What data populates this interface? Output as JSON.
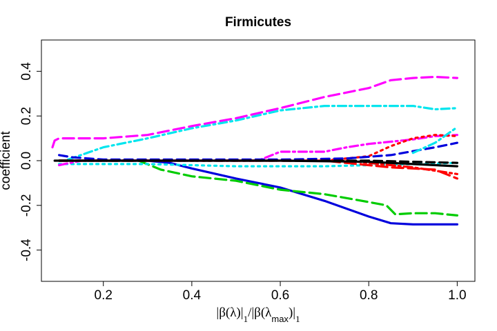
{
  "chart_data": {
    "type": "line",
    "title": "Firmicutes",
    "ylabel": "coefficient",
    "xlabel": {
      "p1": "|β(λ)|",
      "s1": "1",
      "p2": "/|β(λ",
      "s2": "max",
      "p3": ")|",
      "s3": "1"
    },
    "xlim": [
      0.06,
      1.04
    ],
    "ylim": [
      -0.54,
      0.54
    ],
    "x_ticks": [
      0.2,
      0.4,
      0.6,
      0.8,
      1.0
    ],
    "x_tick_labels": [
      "0.2",
      "0.4",
      "0.6",
      "0.8",
      "1.0"
    ],
    "y_ticks": [
      -0.4,
      -0.2,
      0.0,
      0.2,
      0.4
    ],
    "y_tick_labels": [
      "-0.4",
      "-0.2",
      "0.0",
      "0.2",
      "0.4"
    ],
    "grid": false,
    "series": [
      {
        "color": "#ff00ff",
        "dash": "16 7",
        "points": [
          [
            0.085,
            0.06
          ],
          [
            0.09,
            0.09
          ],
          [
            0.1,
            0.1
          ],
          [
            0.2,
            0.1
          ],
          [
            0.3,
            0.115
          ],
          [
            0.4,
            0.155
          ],
          [
            0.5,
            0.19
          ],
          [
            0.6,
            0.235
          ],
          [
            0.7,
            0.285
          ],
          [
            0.8,
            0.325
          ],
          [
            0.85,
            0.36
          ],
          [
            0.9,
            0.37
          ],
          [
            0.95,
            0.375
          ],
          [
            1.0,
            0.37
          ]
        ]
      },
      {
        "color": "#00e5ee",
        "dash": "12 5 3 5",
        "points": [
          [
            0.12,
            0.005
          ],
          [
            0.2,
            0.06
          ],
          [
            0.3,
            0.1
          ],
          [
            0.4,
            0.145
          ],
          [
            0.5,
            0.18
          ],
          [
            0.6,
            0.225
          ],
          [
            0.7,
            0.245
          ],
          [
            0.8,
            0.245
          ],
          [
            0.9,
            0.245
          ],
          [
            0.95,
            0.23
          ],
          [
            1.0,
            0.235
          ]
        ]
      },
      {
        "color": "#0000dd",
        "dash": "",
        "points": [
          [
            0.1,
            0.0
          ],
          [
            0.2,
            0.0
          ],
          [
            0.3,
            0.0
          ],
          [
            0.35,
            -0.01
          ],
          [
            0.4,
            -0.035
          ],
          [
            0.5,
            -0.08
          ],
          [
            0.6,
            -0.12
          ],
          [
            0.7,
            -0.18
          ],
          [
            0.8,
            -0.25
          ],
          [
            0.85,
            -0.28
          ],
          [
            0.9,
            -0.285
          ],
          [
            1.0,
            -0.285
          ]
        ]
      },
      {
        "color": "#00cc00",
        "dash": "16 7",
        "points": [
          [
            0.1,
            0.0
          ],
          [
            0.28,
            0.0
          ],
          [
            0.33,
            -0.04
          ],
          [
            0.4,
            -0.07
          ],
          [
            0.5,
            -0.09
          ],
          [
            0.6,
            -0.13
          ],
          [
            0.7,
            -0.15
          ],
          [
            0.8,
            -0.185
          ],
          [
            0.84,
            -0.2
          ],
          [
            0.86,
            -0.24
          ],
          [
            0.9,
            -0.235
          ],
          [
            0.95,
            -0.235
          ],
          [
            1.0,
            -0.245
          ]
        ]
      },
      {
        "color": "#00e5ee",
        "dash": "3 6",
        "points": [
          [
            0.1,
            -0.015
          ],
          [
            0.3,
            -0.015
          ],
          [
            0.4,
            -0.02
          ],
          [
            0.5,
            -0.025
          ],
          [
            0.6,
            -0.025
          ],
          [
            0.7,
            -0.025
          ],
          [
            0.8,
            -0.02
          ],
          [
            0.9,
            -0.015
          ],
          [
            1.0,
            -0.01
          ]
        ]
      },
      {
        "color": "#ff00ff",
        "dash": "12 5 3 5",
        "points": [
          [
            0.1,
            -0.02
          ],
          [
            0.15,
            0.0
          ],
          [
            0.55,
            0.0
          ],
          [
            0.6,
            0.04
          ],
          [
            0.65,
            0.04
          ],
          [
            0.7,
            0.04
          ],
          [
            0.75,
            0.06
          ],
          [
            0.8,
            0.075
          ],
          [
            0.9,
            0.095
          ],
          [
            0.95,
            0.11
          ],
          [
            1.0,
            0.115
          ]
        ]
      },
      {
        "color": "#ff0000",
        "dash": "3 6",
        "points": [
          [
            0.1,
            0.0
          ],
          [
            0.7,
            0.0
          ],
          [
            0.8,
            0.02
          ],
          [
            0.85,
            0.065
          ],
          [
            0.9,
            0.1
          ],
          [
            0.95,
            0.115
          ],
          [
            1.0,
            0.11
          ]
        ]
      },
      {
        "color": "#0000dd",
        "dash": "12 7",
        "points": [
          [
            0.1,
            0.025
          ],
          [
            0.13,
            0.015
          ],
          [
            0.2,
            0.005
          ],
          [
            0.6,
            0.005
          ],
          [
            0.75,
            0.01
          ],
          [
            0.85,
            0.025
          ],
          [
            0.95,
            0.06
          ],
          [
            1.0,
            0.08
          ]
        ]
      },
      {
        "color": "#00e5ee",
        "dash": "12 5 3 5",
        "points": [
          [
            0.9,
            0.035
          ],
          [
            0.95,
            0.08
          ],
          [
            1.0,
            0.15
          ]
        ]
      },
      {
        "color": "#ff0000",
        "dash": "16 7",
        "points": [
          [
            0.1,
            0.0
          ],
          [
            0.7,
            0.0
          ],
          [
            0.8,
            -0.02
          ],
          [
            0.85,
            -0.03
          ],
          [
            0.9,
            -0.035
          ],
          [
            0.95,
            -0.04
          ],
          [
            1.0,
            -0.08
          ]
        ]
      },
      {
        "color": "#ff0000",
        "dash": "12 5 3 5",
        "points": [
          [
            0.1,
            0.0
          ],
          [
            0.75,
            0.0
          ],
          [
            0.8,
            -0.01
          ],
          [
            0.9,
            -0.03
          ],
          [
            1.0,
            -0.06
          ]
        ]
      },
      {
        "color": "#000000",
        "dash": "",
        "points": [
          [
            0.09,
            0.0
          ],
          [
            0.6,
            0.0
          ],
          [
            0.8,
            -0.005
          ],
          [
            0.9,
            -0.015
          ],
          [
            1.0,
            -0.025
          ]
        ]
      },
      {
        "color": "#000000",
        "dash": "12 7",
        "points": [
          [
            0.1,
            0.0
          ],
          [
            0.8,
            0.0
          ],
          [
            0.9,
            -0.005
          ],
          [
            1.0,
            -0.01
          ]
        ]
      }
    ]
  }
}
